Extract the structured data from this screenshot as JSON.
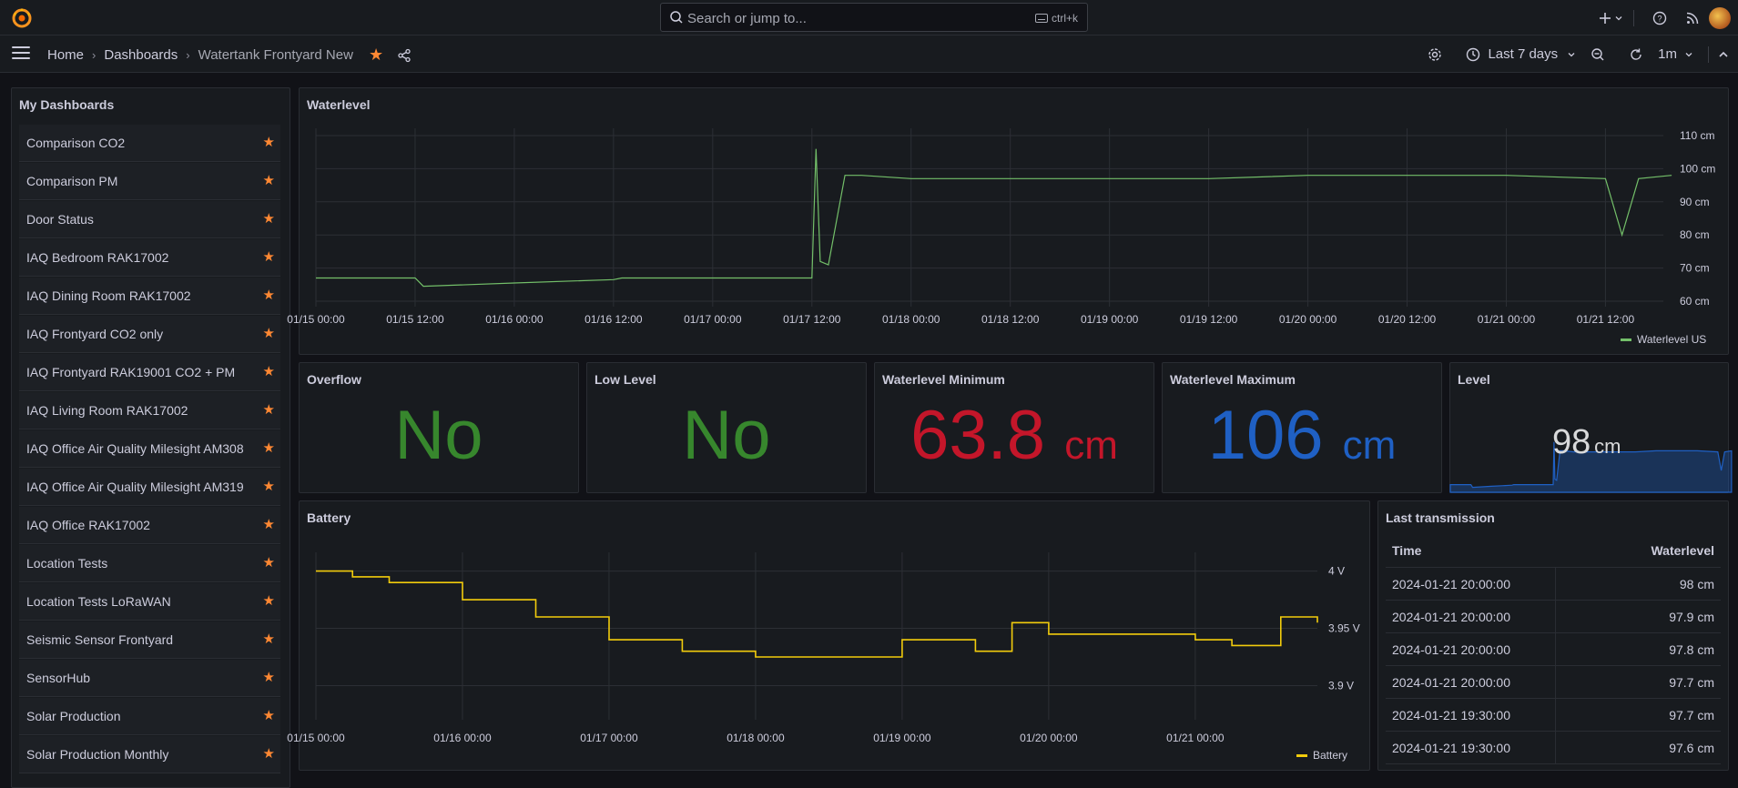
{
  "topbar": {
    "search_placeholder": "Search or jump to...",
    "shortcut": "ctrl+k"
  },
  "breadcrumb": {
    "home": "Home",
    "dashboards": "Dashboards",
    "current": "Watertank Frontyard New"
  },
  "toolbar": {
    "time_range": "Last 7 days",
    "refresh_interval": "1m"
  },
  "dashlist": {
    "title": "My Dashboards",
    "items": [
      "Comparison CO2",
      "Comparison PM",
      "Door Status",
      "IAQ Bedroom RAK17002",
      "IAQ Dining Room RAK17002",
      "IAQ Frontyard CO2 only",
      "IAQ Frontyard RAK19001 CO2 + PM",
      "IAQ Living Room RAK17002",
      "IAQ Office Air Quality Milesight AM308",
      "IAQ Office Air Quality Milesight AM319",
      "IAQ Office RAK17002",
      "Location Tests",
      "Location Tests LoRaWAN",
      "Seismic Sensor Frontyard",
      "SensorHub",
      "Solar Production",
      "Solar Production Monthly"
    ]
  },
  "stats": {
    "overflow": {
      "title": "Overflow",
      "value": "No",
      "color": "#37872d"
    },
    "low_level": {
      "title": "Low Level",
      "value": "No",
      "color": "#37872d"
    },
    "wl_min": {
      "title": "Waterlevel Minimum",
      "value": "63.8",
      "unit": "cm",
      "color": "#c4162a"
    },
    "wl_max": {
      "title": "Waterlevel Maximum",
      "value": "106",
      "unit": "cm",
      "color": "#1f60c4"
    },
    "level": {
      "title": "Level",
      "value": "98",
      "unit": "cm"
    }
  },
  "last_transmission": {
    "title": "Last transmission",
    "headers": [
      "Time",
      "Waterlevel"
    ],
    "rows": [
      [
        "2024-01-21 20:00:00",
        "98 cm"
      ],
      [
        "2024-01-21 20:00:00",
        "97.9 cm"
      ],
      [
        "2024-01-21 20:00:00",
        "97.8 cm"
      ],
      [
        "2024-01-21 20:00:00",
        "97.7 cm"
      ],
      [
        "2024-01-21 19:30:00",
        "97.7 cm"
      ],
      [
        "2024-01-21 19:30:00",
        "97.6 cm"
      ]
    ]
  },
  "chart_data": [
    {
      "type": "line",
      "title": "Waterlevel",
      "series": [
        {
          "name": "Waterlevel US",
          "color": "#73bf69",
          "x": [
            "01/15 00:00",
            "01/15 12:00",
            "01/15 13:00",
            "01/16 00:00",
            "01/16 12:00",
            "01/16 13:00",
            "01/17 00:00",
            "01/17 12:00",
            "01/17 12:30",
            "01/17 13:00",
            "01/17 14:00",
            "01/17 16:00",
            "01/17 18:00",
            "01/18 00:00",
            "01/18 12:00",
            "01/19 00:00",
            "01/19 12:00",
            "01/20 00:00",
            "01/20 12:00",
            "01/21 00:00",
            "01/21 12:00",
            "01/21 14:00",
            "01/21 16:00",
            "01/21 20:00"
          ],
          "values": [
            67,
            67,
            64.5,
            65.5,
            66.5,
            67,
            67,
            67,
            106,
            72,
            71,
            98,
            98,
            97,
            97,
            97,
            97,
            98,
            98,
            98,
            97,
            80,
            97,
            98
          ]
        }
      ],
      "x_ticks": [
        "01/15 00:00",
        "01/15 12:00",
        "01/16 00:00",
        "01/16 12:00",
        "01/17 00:00",
        "01/17 12:00",
        "01/18 00:00",
        "01/18 12:00",
        "01/19 00:00",
        "01/19 12:00",
        "01/20 00:00",
        "01/20 12:00",
        "01/21 00:00",
        "01/21 12:00"
      ],
      "y_ticks": [
        "110 cm",
        "100 cm",
        "90 cm",
        "80 cm",
        "70 cm",
        "60 cm"
      ],
      "ylim": [
        60,
        110
      ],
      "legend": "bottom-right"
    },
    {
      "type": "line",
      "title": "Battery",
      "series": [
        {
          "name": "Battery",
          "color": "#f2cc0c",
          "x": [
            "01/15 00:00",
            "01/15 06:00",
            "01/15 12:00",
            "01/16 00:00",
            "01/16 12:00",
            "01/17 00:00",
            "01/17 12:00",
            "01/18 00:00",
            "01/18 12:00",
            "01/19 00:00",
            "01/19 12:00",
            "01/19 18:00",
            "01/20 00:00",
            "01/20 12:00",
            "01/21 00:00",
            "01/21 06:00",
            "01/21 14:00",
            "01/21 18:00",
            "01/21 20:00"
          ],
          "values": [
            4.0,
            3.995,
            3.99,
            3.975,
            3.96,
            3.94,
            3.93,
            3.925,
            3.925,
            3.94,
            3.93,
            3.955,
            3.945,
            3.945,
            3.94,
            3.935,
            3.96,
            3.96,
            3.955
          ]
        }
      ],
      "x_ticks": [
        "01/15 00:00",
        "01/16 00:00",
        "01/17 00:00",
        "01/18 00:00",
        "01/19 00:00",
        "01/20 00:00",
        "01/21 00:00"
      ],
      "y_ticks": [
        "4 V",
        "3.95 V",
        "3.9 V"
      ],
      "legend": "bottom-right"
    }
  ]
}
